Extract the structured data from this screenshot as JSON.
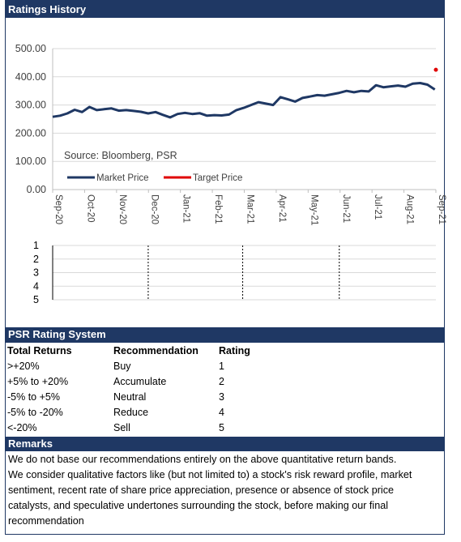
{
  "title": "Ratings History",
  "chart_data": [
    {
      "type": "line",
      "ylim": [
        0,
        500
      ],
      "yticks": [
        "0.00",
        "100.00",
        "200.00",
        "300.00",
        "400.00",
        "500.00"
      ],
      "x_tick_labels": [
        "Sep-20",
        "Oct-20",
        "Nov-20",
        "Dec-20",
        "Jan-21",
        "Feb-21",
        "Mar-21",
        "Apr-21",
        "May-21",
        "Jun-21",
        "Jul-21",
        "Aug-21",
        "Sep-21"
      ],
      "x_range": [
        "2020-09-01",
        "2021-09-01"
      ],
      "annotation": "Source: Bloomberg, PSR",
      "legend": {
        "placement": "lower-left",
        "entries": [
          "Market Price",
          "Target Price"
        ]
      },
      "colors": {
        "market": "#1f3864",
        "target": "#e00000"
      },
      "series": [
        {
          "name": "Market Price",
          "x": [
            "2020-09-01",
            "2020-09-08",
            "2020-09-15",
            "2020-09-22",
            "2020-09-29",
            "2020-10-06",
            "2020-10-13",
            "2020-10-20",
            "2020-10-27",
            "2020-11-03",
            "2020-11-10",
            "2020-11-17",
            "2020-11-24",
            "2020-12-01",
            "2020-12-08",
            "2020-12-15",
            "2020-12-22",
            "2020-12-29",
            "2021-01-05",
            "2021-01-12",
            "2021-01-19",
            "2021-01-26",
            "2021-02-02",
            "2021-02-09",
            "2021-02-16",
            "2021-02-23",
            "2021-03-02",
            "2021-03-09",
            "2021-03-16",
            "2021-03-23",
            "2021-03-30",
            "2021-04-06",
            "2021-04-13",
            "2021-04-20",
            "2021-04-27",
            "2021-05-04",
            "2021-05-11",
            "2021-05-18",
            "2021-05-25",
            "2021-06-01",
            "2021-06-08",
            "2021-06-15",
            "2021-06-22",
            "2021-06-29",
            "2021-07-06",
            "2021-07-13",
            "2021-07-20",
            "2021-07-27",
            "2021-08-03",
            "2021-08-10",
            "2021-08-17",
            "2021-08-24",
            "2021-08-31"
          ],
          "values": [
            258,
            262,
            270,
            283,
            275,
            293,
            282,
            285,
            288,
            280,
            282,
            279,
            276,
            270,
            275,
            265,
            256,
            268,
            272,
            268,
            271,
            262,
            264,
            263,
            266,
            282,
            290,
            300,
            310,
            305,
            300,
            328,
            320,
            312,
            325,
            330,
            335,
            333,
            338,
            343,
            350,
            345,
            350,
            348,
            370,
            363,
            366,
            369,
            365,
            376,
            378,
            372,
            355
          ]
        },
        {
          "name": "Target Price",
          "x": [
            "2021-09-01"
          ],
          "values": [
            425
          ]
        }
      ]
    },
    {
      "type": "scatter",
      "yticks": [
        "1",
        "2",
        "3",
        "4",
        "5"
      ],
      "ylim": [
        1,
        5
      ],
      "dividers_x": [
        "2020-12-01",
        "2021-03-01",
        "2021-06-01"
      ]
    }
  ],
  "rating_system": {
    "title": "PSR Rating System",
    "headers": [
      "Total Returns",
      "Recommendation",
      "Rating"
    ],
    "rows": [
      [
        ">+20%",
        "Buy",
        "1"
      ],
      [
        "+5% to +20%",
        "Accumulate",
        "2"
      ],
      [
        "-5% to +5%",
        "Neutral",
        "3"
      ],
      [
        "-5% to -20%",
        "Reduce",
        "4"
      ],
      [
        "<-20%",
        "Sell",
        "5"
      ]
    ]
  },
  "remarks": {
    "title": "Remarks",
    "lines": [
      "We do not base our recommendations entirely on the  above quantitative return bands.",
      "We consider qualitative factors like (but not limited to) a stock's risk reward profile, market",
      "sentiment, recent rate of share price appreciation, presence or absence of stock price",
      "catalysts, and speculative undertones surrounding the stock, before making our final",
      "recommendation"
    ]
  }
}
